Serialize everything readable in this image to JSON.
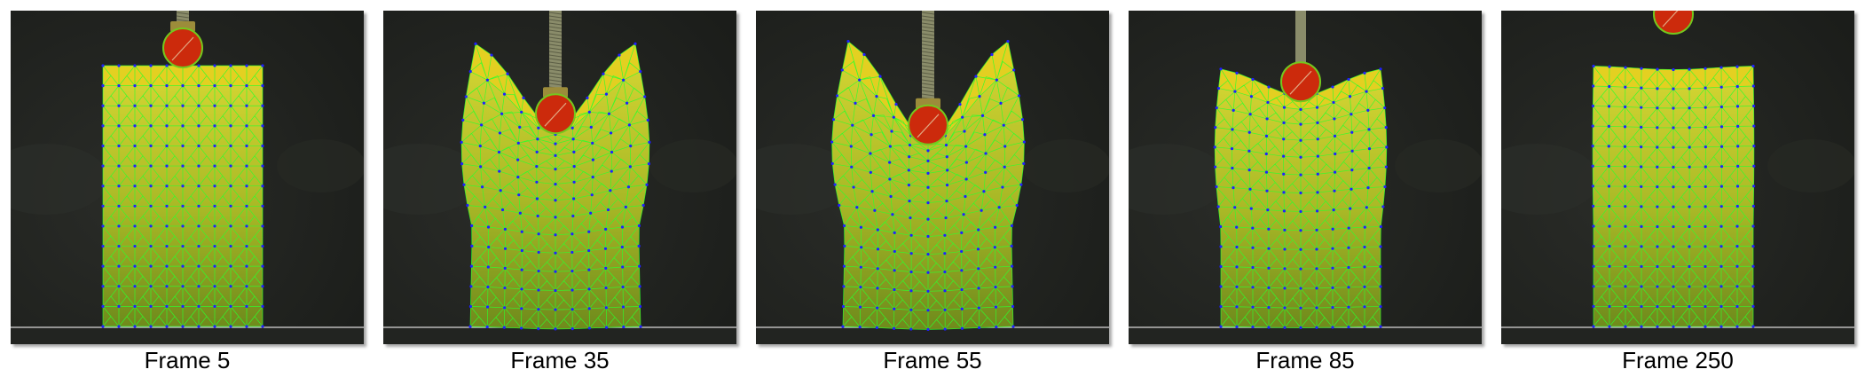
{
  "figure": {
    "frames": [
      {
        "label": "Frame 5",
        "indent": 0.0,
        "lift": 0.0,
        "ball_visible_height": 1.0,
        "rod_visible": true
      },
      {
        "label": "Frame 35",
        "indent": 0.78,
        "lift": 0.55,
        "ball_visible_height": 1.0,
        "rod_visible": true
      },
      {
        "label": "Frame 55",
        "indent": 0.92,
        "lift": 0.62,
        "ball_visible_height": 1.0,
        "rod_visible": true
      },
      {
        "label": "Frame 85",
        "indent": 0.38,
        "lift": 0.0,
        "ball_visible_height": 1.0,
        "rod_visible": false
      },
      {
        "label": "Frame 250",
        "indent": 0.05,
        "lift": 0.0,
        "ball_visible_height": 0.6,
        "rod_visible": false
      }
    ],
    "colors": {
      "background": "#1b1d1a",
      "block_light": "#d7d733",
      "block_dark": "#6f8a1c",
      "block_top": "#e6cf1e",
      "mesh_line": "#2cff2c",
      "node": "#2020ff",
      "ball": "#cc2a0c",
      "ball_outline": "#74c81e",
      "rod": "#8a8c6a",
      "floor_line": "#d8d8d8"
    }
  }
}
